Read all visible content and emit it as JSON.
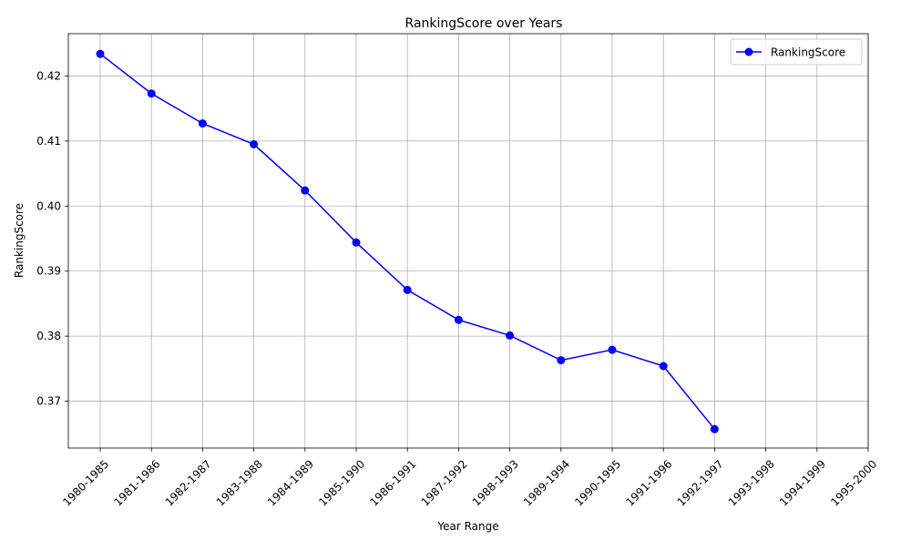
{
  "chart_data": {
    "type": "line",
    "title": "RankingScore over Years",
    "xlabel": "Year Range",
    "ylabel": "RankingScore",
    "categories": [
      "1980-1985",
      "1981-1986",
      "1982-1987",
      "1983-1988",
      "1984-1989",
      "1985-1990",
      "1986-1991",
      "1987-1992",
      "1988-1993",
      "1989-1994",
      "1990-1995",
      "1991-1996",
      "1992-1997",
      "1993-1998",
      "1994-1999",
      "1995-2000"
    ],
    "series": [
      {
        "name": "RankingScore",
        "color": "#0000ff",
        "values": [
          0.4234,
          0.4173,
          0.4127,
          0.4095,
          0.4024,
          0.3944,
          0.3871,
          0.3825,
          0.3801,
          0.3763,
          0.3779,
          0.3754,
          0.3657,
          null,
          null,
          null
        ]
      }
    ],
    "ylim": [
      0.3628,
      0.4265
    ],
    "yticks": [
      "0.37",
      "0.38",
      "0.39",
      "0.40",
      "0.41",
      "0.42"
    ],
    "yticks_values": [
      0.37,
      0.38,
      0.39,
      0.4,
      0.41,
      0.42
    ],
    "grid": true,
    "legend_position": "top-right"
  }
}
